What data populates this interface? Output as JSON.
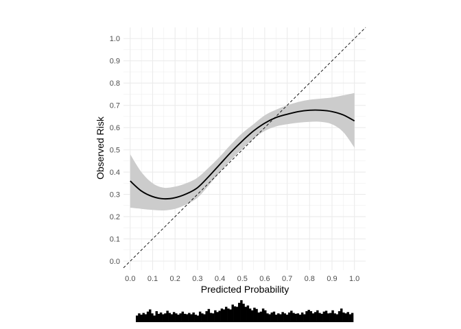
{
  "chart_data": {
    "type": "line",
    "xlabel": "Predicted Probability",
    "ylabel": "Observed Risk",
    "xlim": [
      -0.03,
      1.05
    ],
    "ylim": [
      -0.04,
      1.05
    ],
    "x_ticks": [
      "0.0",
      "0.1",
      "0.2",
      "0.3",
      "0.4",
      "0.5",
      "0.6",
      "0.7",
      "0.8",
      "0.9",
      "1.0"
    ],
    "y_ticks": [
      "0.0",
      "0.1",
      "0.2",
      "0.3",
      "0.4",
      "0.5",
      "0.6",
      "0.7",
      "0.8",
      "0.9",
      "1.0"
    ],
    "grid": true,
    "reference_line": {
      "style": "dashed",
      "from": [
        -0.03,
        -0.03
      ],
      "to": [
        1.05,
        1.05
      ]
    },
    "series": [
      {
        "style": "smooth-line",
        "x": [
          0.0,
          0.05,
          0.1,
          0.15,
          0.2,
          0.25,
          0.3,
          0.35,
          0.4,
          0.45,
          0.5,
          0.55,
          0.6,
          0.65,
          0.7,
          0.75,
          0.8,
          0.85,
          0.9,
          0.95,
          1.0
        ],
        "y": [
          0.36,
          0.315,
          0.29,
          0.28,
          0.285,
          0.302,
          0.33,
          0.38,
          0.435,
          0.49,
          0.54,
          0.585,
          0.62,
          0.645,
          0.66,
          0.672,
          0.678,
          0.678,
          0.672,
          0.657,
          0.63
        ],
        "ci_lower": [
          0.24,
          0.235,
          0.23,
          0.228,
          0.235,
          0.255,
          0.285,
          0.34,
          0.4,
          0.455,
          0.505,
          0.55,
          0.585,
          0.605,
          0.615,
          0.622,
          0.626,
          0.626,
          0.615,
          0.58,
          0.51
        ],
        "ci_upper": [
          0.48,
          0.4,
          0.35,
          0.33,
          0.335,
          0.35,
          0.375,
          0.42,
          0.47,
          0.525,
          0.575,
          0.615,
          0.655,
          0.68,
          0.7,
          0.715,
          0.725,
          0.73,
          0.735,
          0.745,
          0.755
        ]
      }
    ],
    "distribution": {
      "type": "histogram",
      "bins": 100,
      "range": [
        0.0,
        1.0
      ],
      "heights": [
        0.3,
        0.4,
        0.34,
        0.42,
        0.36,
        0.48,
        0.58,
        0.4,
        0.3,
        0.5,
        0.38,
        0.44,
        0.36,
        0.4,
        0.52,
        0.42,
        0.36,
        0.46,
        0.4,
        0.34,
        0.4,
        0.48,
        0.38,
        0.36,
        0.42,
        0.36,
        0.44,
        0.34,
        0.3,
        0.48,
        0.4,
        0.36,
        0.5,
        0.6,
        0.42,
        0.4,
        0.54,
        0.46,
        0.52,
        0.62,
        0.58,
        0.7,
        0.62,
        0.58,
        0.8,
        0.72,
        0.7,
        0.88,
        1.0,
        0.84,
        0.7,
        0.76,
        0.62,
        0.54,
        0.66,
        0.6,
        0.44,
        0.48,
        0.62,
        0.54,
        0.4,
        0.36,
        0.44,
        0.48,
        0.34,
        0.4,
        0.36,
        0.46,
        0.4,
        0.34,
        0.44,
        0.52,
        0.42,
        0.38,
        0.4,
        0.34,
        0.44,
        0.36,
        0.5,
        0.56,
        0.5,
        0.4,
        0.46,
        0.54,
        0.42,
        0.38,
        0.48,
        0.52,
        0.4,
        0.42,
        0.54,
        0.4,
        0.36,
        0.5,
        0.62,
        0.44,
        0.4,
        0.46,
        0.36,
        0.42
      ]
    },
    "colors": {
      "line": "#000000",
      "ribbon": "#cccccc",
      "grid": "#ebebeb",
      "histogram": "#000000",
      "text": "#4d4d4d"
    }
  }
}
